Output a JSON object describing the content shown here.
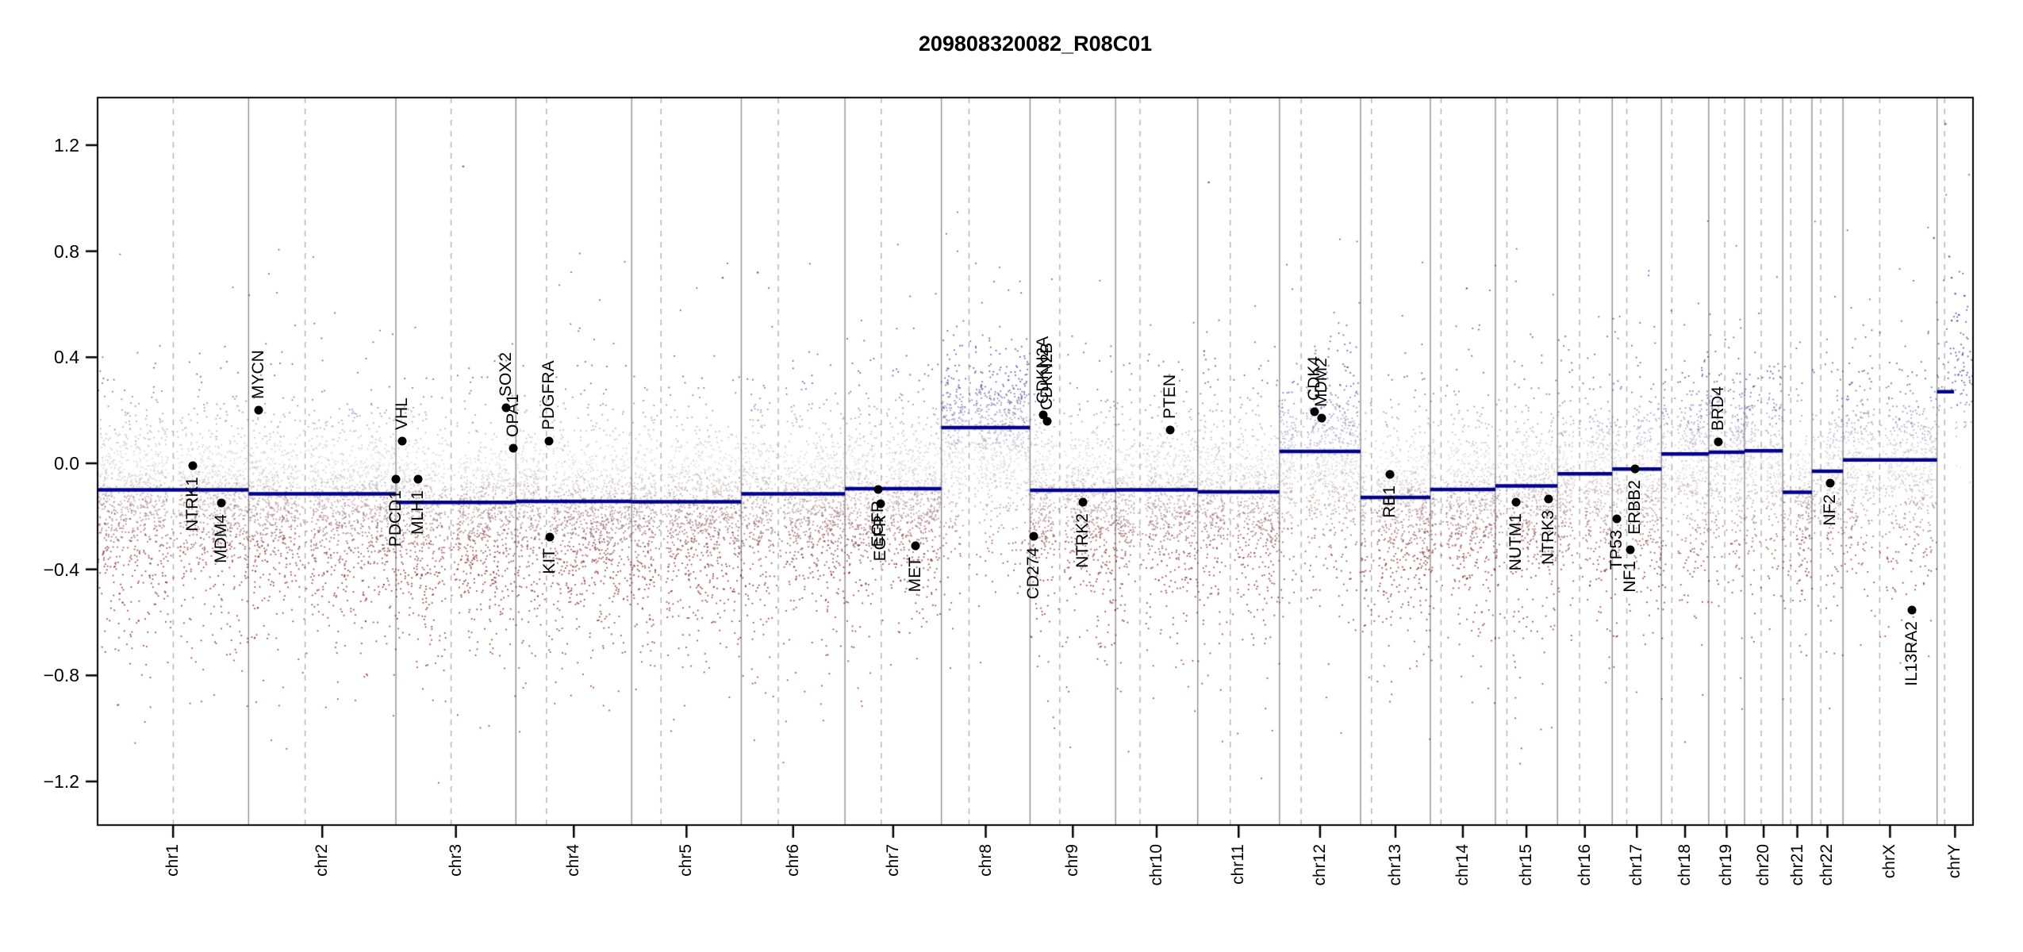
{
  "title": "209808320082_R08C01",
  "colors": {
    "segment_line": "#00008B",
    "chrom_boundary": "#909090",
    "centromere_dash": "#b0b0b0",
    "plot_border": "#000000",
    "gain_point": "#3a3aa5",
    "loss_point": "#821919",
    "neutral_point": "#a8a2a8",
    "gene_marker": "#000000",
    "background": "#ffffff"
  },
  "chart_data": {
    "type": "scatter",
    "title": "209808320082_R08C01",
    "xlabel": "",
    "ylabel": "",
    "legend": "none",
    "grid": "off",
    "ylim": [
      -1.37,
      1.37
    ],
    "y_ticks": [
      {
        "label": "1.2",
        "value": 1.2
      },
      {
        "label": "0.8",
        "value": 0.8
      },
      {
        "label": "0.4",
        "value": 0.4
      },
      {
        "label": "0.0",
        "value": 0.0
      },
      {
        "label": "−0.4",
        "value": -0.4
      },
      {
        "label": "−0.8",
        "value": -0.8
      },
      {
        "label": "−1.2",
        "value": -1.2
      }
    ],
    "x_tick_labels": [
      "chr1",
      "chr2",
      "chr3",
      "chr4",
      "chr5",
      "chr6",
      "chr7",
      "chr8",
      "chr9",
      "chr10",
      "chr11",
      "chr12",
      "chr13",
      "chr14",
      "chr15",
      "chr16",
      "chr17",
      "chr18",
      "chr19",
      "chr20",
      "chr21",
      "chr22",
      "chrX",
      "chrY"
    ],
    "chromosomes": [
      {
        "name": "chr1",
        "length_mb": 249.25,
        "centromere_mb": 125.0,
        "segment_value": -0.1
      },
      {
        "name": "chr2",
        "length_mb": 243.2,
        "centromere_mb": 93.3,
        "segment_value": -0.115
      },
      {
        "name": "chr3",
        "length_mb": 198.02,
        "centromere_mb": 91.0,
        "segment_value": -0.147
      },
      {
        "name": "chr4",
        "length_mb": 191.15,
        "centromere_mb": 50.4,
        "segment_value": -0.144
      },
      {
        "name": "chr5",
        "length_mb": 180.92,
        "centromere_mb": 48.4,
        "segment_value": -0.145
      },
      {
        "name": "chr6",
        "length_mb": 171.12,
        "centromere_mb": 61.0,
        "segment_value": -0.115
      },
      {
        "name": "chr7",
        "length_mb": 159.14,
        "centromere_mb": 59.9,
        "segment_value": -0.096
      },
      {
        "name": "chr8",
        "length_mb": 146.36,
        "centromere_mb": 45.6,
        "segment_value": 0.135
      },
      {
        "name": "chr9",
        "length_mb": 141.21,
        "centromere_mb": 49.0,
        "segment_value": -0.102
      },
      {
        "name": "chr10",
        "length_mb": 135.53,
        "centromere_mb": 40.2,
        "segment_value": -0.1
      },
      {
        "name": "chr11",
        "length_mb": 134.95,
        "centromere_mb": 53.7,
        "segment_value": -0.108
      },
      {
        "name": "chr12",
        "length_mb": 133.85,
        "centromere_mb": 35.8,
        "segment_value": 0.045
      },
      {
        "name": "chr13",
        "length_mb": 115.17,
        "centromere_mb": 17.9,
        "segment_value": -0.129
      },
      {
        "name": "chr14",
        "length_mb": 107.35,
        "centromere_mb": 17.6,
        "segment_value": -0.099
      },
      {
        "name": "chr15",
        "length_mb": 102.53,
        "centromere_mb": 19.0,
        "segment_value": -0.085
      },
      {
        "name": "chr16",
        "length_mb": 90.35,
        "centromere_mb": 36.6,
        "segment_value": -0.04
      },
      {
        "name": "chr17",
        "length_mb": 81.2,
        "centromere_mb": 24.0,
        "segment_value": -0.022
      },
      {
        "name": "chr18",
        "length_mb": 78.08,
        "centromere_mb": 17.2,
        "segment_value": 0.035
      },
      {
        "name": "chr19",
        "length_mb": 59.13,
        "centromere_mb": 26.5,
        "segment_value": 0.042
      },
      {
        "name": "chr20",
        "length_mb": 63.03,
        "centromere_mb": 27.5,
        "segment_value": 0.047
      },
      {
        "name": "chr21",
        "length_mb": 48.13,
        "centromere_mb": 13.2,
        "segment_value": -0.109
      },
      {
        "name": "chr22",
        "length_mb": 51.3,
        "centromere_mb": 14.7,
        "segment_value": -0.03
      },
      {
        "name": "chrX",
        "length_mb": 155.27,
        "centromere_mb": 60.6,
        "segment_value": 0.013
      },
      {
        "name": "chrY",
        "length_mb": 59.37,
        "centromere_mb": 12.5,
        "segment_value": 0.27,
        "segment_end_mb": 28
      }
    ],
    "genes": [
      {
        "name": "NTRK1",
        "chrom": "chr1",
        "mb": 156.8,
        "value": -0.01,
        "label_side": "below"
      },
      {
        "name": "MDM4",
        "chrom": "chr1",
        "mb": 204.5,
        "value": -0.15,
        "label_side": "below"
      },
      {
        "name": "MYCN",
        "chrom": "chr2",
        "mb": 16.1,
        "value": 0.2,
        "label_side": "above"
      },
      {
        "name": "PDCD1",
        "chrom": "chr2",
        "mb": 242.8,
        "value": -0.06,
        "label_side": "below"
      },
      {
        "name": "VHL",
        "chrom": "chr3",
        "mb": 10.2,
        "value": 0.084,
        "label_side": "above"
      },
      {
        "name": "MLH1",
        "chrom": "chr3",
        "mb": 37.0,
        "value": -0.06,
        "label_side": "below"
      },
      {
        "name": "SOX2",
        "chrom": "chr3",
        "mb": 181.4,
        "value": 0.21,
        "label_side": "above"
      },
      {
        "name": "OPA1",
        "chrom": "chr3",
        "mb": 193.3,
        "value": 0.057,
        "label_side": "above"
      },
      {
        "name": "PDGFRA",
        "chrom": "chr4",
        "mb": 55.1,
        "value": 0.084,
        "label_side": "above"
      },
      {
        "name": "KIT",
        "chrom": "chr4",
        "mb": 55.5,
        "value": -0.278,
        "label_side": "below"
      },
      {
        "name": "EGFR",
        "chrom": "chr7",
        "mb": 55.1,
        "value": -0.099,
        "label_side": "below"
      },
      {
        "name": "EGFR",
        "chrom": "chr7",
        "mb": 58.5,
        "value": -0.153,
        "label_side": "below"
      },
      {
        "name": "MET",
        "chrom": "chr7",
        "mb": 116.3,
        "value": -0.311,
        "label_side": "below"
      },
      {
        "name": "CD274",
        "chrom": "chr9",
        "mb": 5.4,
        "value": -0.275,
        "label_side": "below"
      },
      {
        "name": "CDKN2A",
        "chrom": "chr9",
        "mb": 21.97,
        "value": 0.183,
        "label_side": "above"
      },
      {
        "name": "CDKN2B",
        "chrom": "chr9",
        "mb": 28.0,
        "value": 0.158,
        "label_side": "above"
      },
      {
        "name": "NTRK2",
        "chrom": "chr9",
        "mb": 87.3,
        "value": -0.147,
        "label_side": "below"
      },
      {
        "name": "PTEN",
        "chrom": "chr10",
        "mb": 89.6,
        "value": 0.126,
        "label_side": "above"
      },
      {
        "name": "CDK4",
        "chrom": "chr12",
        "mb": 58.1,
        "value": 0.195,
        "label_side": "above"
      },
      {
        "name": "MDM2",
        "chrom": "chr12",
        "mb": 69.2,
        "value": 0.172,
        "label_side": "above"
      },
      {
        "name": "RB1",
        "chrom": "chr13",
        "mb": 48.9,
        "value": -0.042,
        "label_side": "below"
      },
      {
        "name": "NUTM1",
        "chrom": "chr15",
        "mb": 34.6,
        "value": -0.147,
        "label_side": "below"
      },
      {
        "name": "NTRK3",
        "chrom": "chr15",
        "mb": 88.4,
        "value": -0.135,
        "label_side": "below"
      },
      {
        "name": "TP53",
        "chrom": "chr17",
        "mb": 7.57,
        "value": -0.209,
        "label_side": "below"
      },
      {
        "name": "NF1",
        "chrom": "chr17",
        "mb": 29.4,
        "value": -0.326,
        "label_side": "below"
      },
      {
        "name": "ERBB2",
        "chrom": "chr17",
        "mb": 37.8,
        "value": -0.022,
        "label_side": "below"
      },
      {
        "name": "BRD4",
        "chrom": "chr19",
        "mb": 15.35,
        "value": 0.08,
        "label_side": "above"
      },
      {
        "name": "NF2",
        "chrom": "chr22",
        "mb": 30.0,
        "value": -0.075,
        "label_side": "below"
      },
      {
        "name": "IL13RA2",
        "chrom": "chrX",
        "mb": 114.25,
        "value": -0.554,
        "label_side": "below"
      }
    ],
    "outlier_points": [
      {
        "chrom": "chr3",
        "mb": 111,
        "value": 1.12
      },
      {
        "chrom": "chr5",
        "mb": 150,
        "value": 0.7
      },
      {
        "chrom": "chr6",
        "mb": 27,
        "value": 0.72
      },
      {
        "chrom": "chr11",
        "mb": 18,
        "value": 1.06
      },
      {
        "chrom": "chr14",
        "mb": 60,
        "value": 0.66
      },
      {
        "chrom": "chrX",
        "mb": 150,
        "value": 0.85
      },
      {
        "chrom": "chrY",
        "mb": 14,
        "value": 1.28
      },
      {
        "chrom": "chrY",
        "mb": 20,
        "value": 0.78
      },
      {
        "chrom": "chrY",
        "mb": 24,
        "value": 0.7
      },
      {
        "chrom": "chrY",
        "mb": 30,
        "value": 0.64
      },
      {
        "chrom": "chrY",
        "mb": 36,
        "value": 0.56
      },
      {
        "chrom": "chrY",
        "mb": 42,
        "value": 0.41
      }
    ],
    "point_cloud": {
      "seed": 42,
      "points_per_mb": 7.5,
      "sigma_narrow": 0.11,
      "sigma_wide": 0.22,
      "down_tail_prob": 0.28,
      "down_tail_scale": 0.22,
      "high_outlier_prob": 0.004,
      "low_outlier_prob": 0.002,
      "chrY_density_factor": 0.28,
      "chrX_density_factor": 0.85
    }
  }
}
